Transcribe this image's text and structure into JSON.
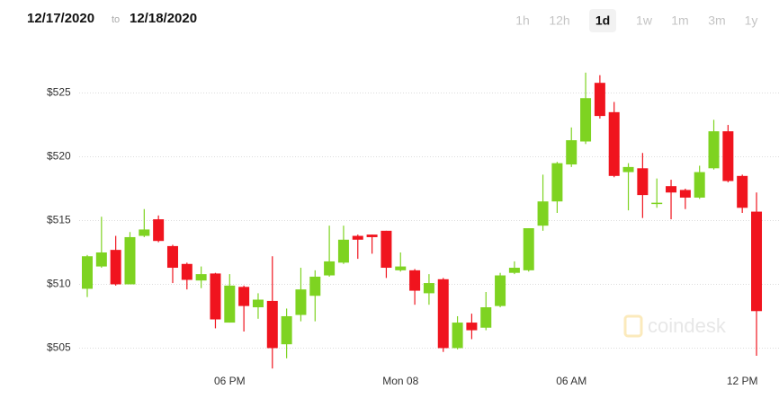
{
  "header": {
    "from": "12/17/2020",
    "to_word": "to",
    "to": "12/18/2020",
    "ranges": [
      "1h",
      "12h",
      "1d",
      "1w",
      "1m",
      "3m",
      "1y"
    ],
    "selected_range": 2
  },
  "chart_data": {
    "type": "candlestick",
    "watermark": "coindesk",
    "up_color": "#7ed321",
    "down_color": "#f0141e",
    "grid": true,
    "categories": [
      null,
      null,
      null,
      null,
      null,
      null,
      null,
      null,
      null,
      null,
      "06 PM",
      null,
      null,
      null,
      null,
      null,
      null,
      null,
      null,
      null,
      null,
      null,
      "Mon 08",
      null,
      null,
      null,
      null,
      null,
      null,
      null,
      null,
      null,
      null,
      null,
      "06 AM",
      null,
      null,
      null,
      null,
      null,
      null,
      null,
      null,
      null,
      null,
      null,
      "12 PM",
      null
    ],
    "open": [
      509.65,
      511.4,
      512.7,
      510.0,
      513.8,
      515.1,
      513.0,
      511.6,
      510.3,
      510.85,
      507.0,
      509.8,
      508.2,
      508.7,
      505.3,
      507.6,
      509.1,
      510.7,
      511.7,
      513.8,
      513.9,
      514.2,
      511.1,
      511.1,
      509.3,
      510.4,
      505.0,
      507.0,
      506.6,
      508.3,
      510.9,
      511.1,
      514.6,
      516.5,
      519.4,
      521.2,
      525.8,
      523.5,
      518.8,
      519.1,
      516.3,
      517.7,
      517.4,
      516.8,
      519.1,
      522.0,
      518.5,
      515.7
    ],
    "high": [
      512.3,
      515.3,
      513.8,
      514.1,
      515.9,
      515.4,
      513.1,
      511.7,
      511.4,
      510.9,
      510.8,
      509.9,
      509.3,
      512.2,
      508.1,
      511.3,
      511.1,
      514.6,
      514.6,
      513.9,
      513.9,
      514.2,
      512.5,
      511.2,
      510.8,
      510.5,
      507.5,
      507.7,
      509.4,
      510.9,
      511.8,
      514.4,
      518.6,
      519.6,
      522.3,
      526.6,
      526.4,
      524.3,
      519.5,
      520.3,
      518.3,
      518.2,
      517.5,
      519.3,
      522.9,
      522.5,
      518.6,
      517.2
    ],
    "low": [
      509.0,
      511.3,
      509.9,
      510.0,
      513.7,
      513.3,
      510.1,
      509.6,
      509.7,
      506.55,
      507.0,
      506.3,
      507.3,
      503.4,
      504.2,
      507.1,
      507.1,
      510.6,
      511.6,
      512.0,
      512.4,
      510.5,
      511.0,
      508.4,
      508.4,
      504.7,
      504.9,
      505.7,
      506.4,
      508.2,
      510.8,
      511.0,
      514.2,
      515.6,
      519.2,
      521.0,
      523.0,
      518.4,
      515.8,
      515.2,
      516.0,
      515.1,
      515.9,
      516.7,
      519.0,
      518.0,
      515.6,
      504.4
    ],
    "close": [
      512.2,
      512.5,
      510.0,
      513.7,
      514.3,
      513.4,
      511.3,
      510.35,
      510.8,
      507.25,
      509.9,
      508.3,
      508.8,
      505.0,
      507.5,
      509.6,
      510.6,
      511.8,
      513.5,
      513.5,
      513.7,
      511.3,
      511.4,
      509.5,
      510.1,
      505.0,
      507.0,
      506.4,
      508.2,
      510.7,
      511.3,
      514.4,
      516.5,
      519.5,
      521.3,
      524.6,
      523.2,
      518.5,
      519.2,
      517.0,
      516.4,
      517.2,
      516.8,
      518.8,
      522.0,
      518.1,
      516.0,
      507.9
    ],
    "ylim": [
      503.2,
      526.8
    ],
    "yticks": [
      {
        "value": 505,
        "label": "$505"
      },
      {
        "value": 510,
        "label": "$510"
      },
      {
        "value": 515,
        "label": "$515"
      },
      {
        "value": 520,
        "label": "$520"
      },
      {
        "value": 525,
        "label": "$525"
      }
    ]
  }
}
